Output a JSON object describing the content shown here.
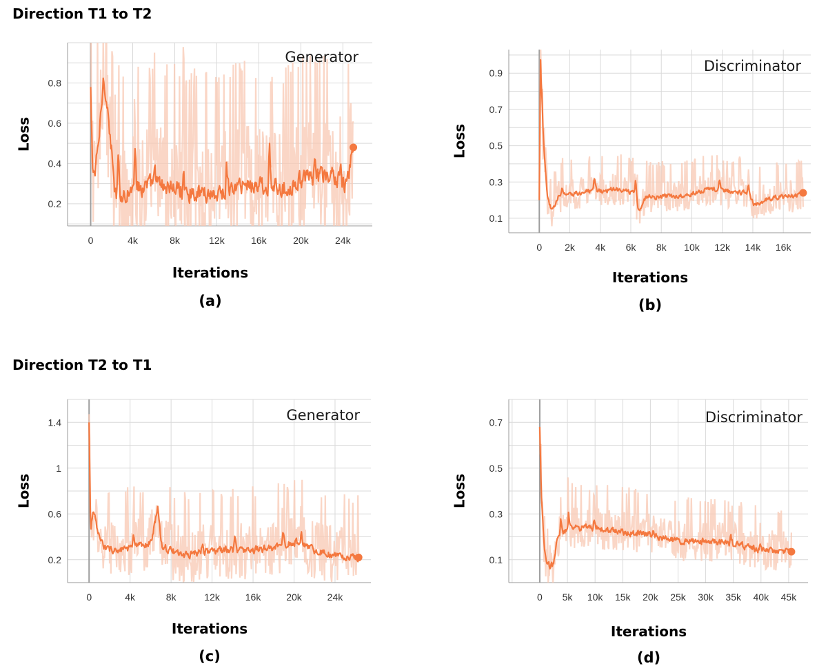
{
  "headings": {
    "top": "Direction T1 to T2",
    "bottom": "Direction T2 to T1"
  },
  "colors": {
    "smooth": "#f4783f",
    "raw": "#f8c8b3",
    "grid": "#d9d9d9",
    "axis": "#999999",
    "zero": "#9e9e9e"
  },
  "chart_data": [
    {
      "type": "line",
      "id": "a",
      "title": "Generator",
      "xlabel": "Iterations",
      "ylabel": "Loss",
      "caption": "(a)",
      "xlim": [
        -2200,
        26800
      ],
      "ylim": [
        0.09,
        1.0
      ],
      "xticks": [
        0,
        4000,
        8000,
        12000,
        16000,
        20000,
        24000
      ],
      "xtick_labels": [
        "0",
        "4k",
        "8k",
        "12k",
        "16k",
        "20k",
        "24k"
      ],
      "yticks": [
        0.2,
        0.4,
        0.6,
        0.8
      ],
      "ytick_labels": [
        "0.2",
        "0.4",
        "0.6",
        "0.8"
      ],
      "series": [
        {
          "name": "loss",
          "x_end": 25000,
          "anchors": [
            [
              0,
              0.78
            ],
            [
              150,
              0.4
            ],
            [
              400,
              0.34
            ],
            [
              900,
              0.62
            ],
            [
              1200,
              0.86
            ],
            [
              1500,
              0.7
            ],
            [
              1900,
              0.48
            ],
            [
              2300,
              0.22
            ],
            [
              3500,
              0.26
            ],
            [
              6000,
              0.3
            ],
            [
              9000,
              0.26
            ],
            [
              12000,
              0.25
            ],
            [
              15000,
              0.3
            ],
            [
              18000,
              0.27
            ],
            [
              20000,
              0.32
            ],
            [
              23000,
              0.34
            ],
            [
              24300,
              0.28
            ],
            [
              24900,
              0.47
            ]
          ],
          "noise": 0.07,
          "raw_noise": 0.32,
          "spikes": [
            [
              2600,
              0.5
            ],
            [
              4200,
              0.66
            ],
            [
              6100,
              0.43
            ],
            [
              8800,
              0.38
            ],
            [
              12900,
              0.44
            ],
            [
              17000,
              0.55
            ],
            [
              21300,
              0.46
            ],
            [
              23800,
              0.4
            ]
          ],
          "end_value": 0.48
        }
      ]
    },
    {
      "type": "line",
      "id": "b",
      "title": "Discriminator",
      "xlabel": "Iterations",
      "ylabel": "Loss",
      "caption": "(b)",
      "xlim": [
        -2000,
        17800
      ],
      "ylim": [
        0.02,
        1.03
      ],
      "xticks": [
        0,
        2000,
        4000,
        6000,
        8000,
        10000,
        12000,
        14000,
        16000
      ],
      "xtick_labels": [
        "0",
        "2k",
        "4k",
        "6k",
        "8k",
        "10k",
        "12k",
        "14k",
        "16k"
      ],
      "yticks": [
        0.1,
        0.3,
        0.5,
        0.7,
        0.9
      ],
      "ytick_labels": [
        "0.1",
        "0.3",
        "0.5",
        "0.7",
        "0.9"
      ],
      "series": [
        {
          "name": "loss",
          "x_end": 17300,
          "anchors": [
            [
              0,
              0.2
            ],
            [
              80,
              0.98
            ],
            [
              250,
              0.5
            ],
            [
              500,
              0.2
            ],
            [
              800,
              0.14
            ],
            [
              1200,
              0.22
            ],
            [
              2500,
              0.24
            ],
            [
              5000,
              0.26
            ],
            [
              6200,
              0.24
            ],
            [
              6500,
              0.14
            ],
            [
              7000,
              0.22
            ],
            [
              9000,
              0.22
            ],
            [
              11000,
              0.26
            ],
            [
              13500,
              0.24
            ],
            [
              14100,
              0.17
            ],
            [
              15000,
              0.21
            ],
            [
              16500,
              0.22
            ],
            [
              17300,
              0.24
            ]
          ],
          "noise": 0.02,
          "raw_noise": 0.1,
          "spikes": [
            [
              1500,
              0.28
            ],
            [
              3600,
              0.34
            ],
            [
              6300,
              0.35
            ],
            [
              11800,
              0.34
            ],
            [
              13700,
              0.33
            ]
          ],
          "end_value": 0.24
        }
      ]
    },
    {
      "type": "line",
      "id": "c",
      "title": "Generator",
      "xlabel": "Iterations",
      "ylabel": "Loss",
      "caption": "(c)",
      "xlim": [
        -2100,
        27500
      ],
      "ylim": [
        0.0,
        1.6
      ],
      "xticks": [
        0,
        4000,
        8000,
        12000,
        16000,
        20000,
        24000
      ],
      "xtick_labels": [
        "0",
        "4k",
        "8k",
        "12k",
        "16k",
        "20k",
        "24k"
      ],
      "yticks": [
        0.2,
        0.6,
        1.0,
        1.4
      ],
      "ytick_labels": [
        "0.2",
        "0.6",
        "1",
        "1.4"
      ],
      "series": [
        {
          "name": "loss",
          "x_end": 26300,
          "anchors": [
            [
              0,
              1.4
            ],
            [
              150,
              0.5
            ],
            [
              400,
              0.62
            ],
            [
              900,
              0.4
            ],
            [
              1500,
              0.3
            ],
            [
              3000,
              0.28
            ],
            [
              6000,
              0.34
            ],
            [
              6700,
              0.68
            ],
            [
              7000,
              0.32
            ],
            [
              9000,
              0.24
            ],
            [
              12000,
              0.28
            ],
            [
              15000,
              0.28
            ],
            [
              18000,
              0.3
            ],
            [
              20000,
              0.36
            ],
            [
              22000,
              0.28
            ],
            [
              24000,
              0.24
            ],
            [
              26300,
              0.22
            ]
          ],
          "noise": 0.05,
          "raw_noise": 0.28,
          "spikes": [
            [
              4300,
              0.45
            ],
            [
              11000,
              0.38
            ],
            [
              14200,
              0.42
            ],
            [
              18900,
              0.48
            ],
            [
              20700,
              0.5
            ]
          ],
          "end_value": 0.22
        }
      ]
    },
    {
      "type": "line",
      "id": "d",
      "title": "Discriminator",
      "xlabel": "Iterations",
      "ylabel": "Loss",
      "caption": "(d)",
      "xlim": [
        -5600,
        48500
      ],
      "ylim": [
        0.0,
        0.8
      ],
      "xticks": [
        0,
        5000,
        10000,
        15000,
        20000,
        25000,
        30000,
        35000,
        40000,
        45000
      ],
      "xtick_labels": [
        "0",
        "5k",
        "10k",
        "15k",
        "20k",
        "25k",
        "30k",
        "35k",
        "40k",
        "45k"
      ],
      "yticks": [
        0.1,
        0.3,
        0.5,
        0.7
      ],
      "ytick_labels": [
        "0.1",
        "0.3",
        "0.5",
        "0.7"
      ],
      "series": [
        {
          "name": "loss",
          "x_end": 45500,
          "anchors": [
            [
              0,
              0.68
            ],
            [
              250,
              0.4
            ],
            [
              700,
              0.14
            ],
            [
              1200,
              0.07
            ],
            [
              2500,
              0.08
            ],
            [
              3000,
              0.2
            ],
            [
              6000,
              0.24
            ],
            [
              10000,
              0.24
            ],
            [
              15000,
              0.22
            ],
            [
              20000,
              0.21
            ],
            [
              25000,
              0.18
            ],
            [
              30000,
              0.18
            ],
            [
              35000,
              0.17
            ],
            [
              40000,
              0.14
            ],
            [
              45500,
              0.135
            ]
          ],
          "noise": 0.022,
          "raw_noise": 0.1,
          "spikes": [
            [
              3800,
              0.3
            ],
            [
              5200,
              0.33
            ],
            [
              9800,
              0.31
            ],
            [
              20500,
              0.26
            ],
            [
              34500,
              0.25
            ],
            [
              39800,
              0.19
            ]
          ],
          "end_value": 0.135
        }
      ]
    }
  ]
}
